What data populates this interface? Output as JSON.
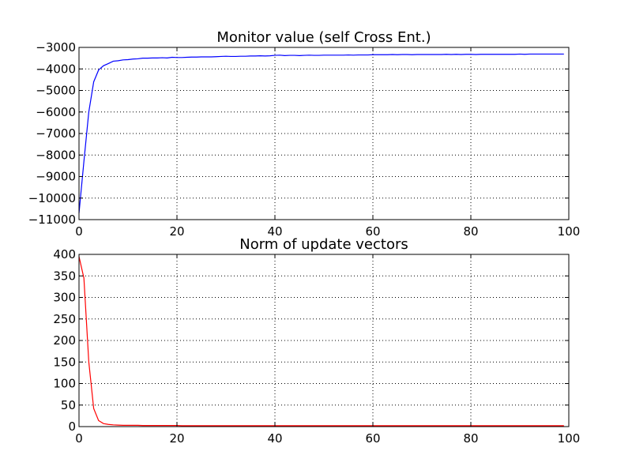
{
  "chart_data": [
    {
      "type": "line",
      "title": "Monitor value (self Cross Ent.)",
      "xlabel": "",
      "ylabel": "",
      "xlim": [
        0,
        100
      ],
      "ylim": [
        -11000,
        -3000
      ],
      "xticks": [
        0,
        20,
        40,
        60,
        80,
        100
      ],
      "xtick_labels": [
        "0",
        "20",
        "40",
        "60",
        "80",
        "100"
      ],
      "yticks": [
        -3000,
        -4000,
        -5000,
        -6000,
        -7000,
        -8000,
        -9000,
        -10000,
        -11000
      ],
      "ytick_labels": [
        "−3000",
        "−4000",
        "−5000",
        "−6000",
        "−7000",
        "−8000",
        "−9000",
        "−10000",
        "−11000"
      ],
      "grid": true,
      "color": "#0000ff",
      "series": [
        {
          "x": [
            0,
            1,
            2,
            3,
            4,
            5,
            6,
            7,
            8,
            9,
            10,
            11,
            12,
            13,
            14,
            15,
            16,
            17,
            18,
            19,
            20,
            21,
            22,
            23,
            24,
            25,
            26,
            27,
            28,
            29,
            30,
            31,
            32,
            33,
            34,
            35,
            36,
            37,
            38,
            39,
            40,
            41,
            42,
            43,
            44,
            45,
            46,
            47,
            48,
            49,
            50,
            51,
            52,
            53,
            54,
            55,
            56,
            57,
            58,
            59,
            60,
            61,
            62,
            63,
            64,
            65,
            66,
            67,
            68,
            69,
            70,
            71,
            72,
            73,
            74,
            75,
            76,
            77,
            78,
            79,
            80,
            81,
            82,
            83,
            84,
            85,
            86,
            87,
            88,
            89,
            90,
            91,
            92,
            93,
            94,
            95,
            96,
            97,
            98,
            99
          ],
          "values": [
            -10700,
            -8300,
            -6000,
            -4600,
            -4050,
            -3850,
            -3750,
            -3640,
            -3620,
            -3580,
            -3570,
            -3540,
            -3530,
            -3500,
            -3500,
            -3490,
            -3490,
            -3480,
            -3490,
            -3460,
            -3470,
            -3470,
            -3460,
            -3450,
            -3450,
            -3440,
            -3440,
            -3440,
            -3430,
            -3420,
            -3410,
            -3420,
            -3420,
            -3410,
            -3410,
            -3400,
            -3400,
            -3390,
            -3400,
            -3390,
            -3370,
            -3360,
            -3380,
            -3370,
            -3370,
            -3380,
            -3370,
            -3360,
            -3370,
            -3370,
            -3360,
            -3360,
            -3360,
            -3360,
            -3360,
            -3350,
            -3360,
            -3350,
            -3350,
            -3350,
            -3340,
            -3340,
            -3340,
            -3340,
            -3330,
            -3340,
            -3330,
            -3330,
            -3340,
            -3330,
            -3330,
            -3330,
            -3330,
            -3330,
            -3330,
            -3320,
            -3330,
            -3320,
            -3330,
            -3320,
            -3320,
            -3330,
            -3320,
            -3320,
            -3320,
            -3320,
            -3320,
            -3320,
            -3320,
            -3320,
            -3310,
            -3320,
            -3310,
            -3310,
            -3310,
            -3310,
            -3310,
            -3310,
            -3310,
            -3310
          ]
        }
      ]
    },
    {
      "type": "line",
      "title": "Norm of update vectors",
      "xlabel": "",
      "ylabel": "",
      "xlim": [
        0,
        100
      ],
      "ylim": [
        0,
        400
      ],
      "xticks": [
        0,
        20,
        40,
        60,
        80,
        100
      ],
      "xtick_labels": [
        "0",
        "20",
        "40",
        "60",
        "80",
        "100"
      ],
      "yticks": [
        0,
        50,
        100,
        150,
        200,
        250,
        300,
        350,
        400
      ],
      "ytick_labels": [
        "0",
        "50",
        "100",
        "150",
        "200",
        "250",
        "300",
        "350",
        "400"
      ],
      "grid": true,
      "color": "#ff0000",
      "series": [
        {
          "x": [
            0,
            1,
            2,
            3,
            4,
            5,
            6,
            7,
            8,
            9,
            10,
            11,
            12,
            13,
            14,
            15,
            16,
            17,
            18,
            19,
            20,
            21,
            22,
            23,
            24,
            25,
            26,
            27,
            28,
            29,
            30,
            31,
            32,
            33,
            34,
            35,
            36,
            37,
            38,
            39,
            40,
            41,
            42,
            43,
            44,
            45,
            46,
            47,
            48,
            49,
            50,
            51,
            52,
            53,
            54,
            55,
            56,
            57,
            58,
            59,
            60,
            61,
            62,
            63,
            64,
            65,
            66,
            67,
            68,
            69,
            70,
            71,
            72,
            73,
            74,
            75,
            76,
            77,
            78,
            79,
            80,
            81,
            82,
            83,
            84,
            85,
            86,
            87,
            88,
            89,
            90,
            91,
            92,
            93,
            94,
            95,
            96,
            97,
            98,
            99
          ],
          "values": [
            395,
            345,
            150,
            42,
            14,
            7,
            5,
            4,
            3.5,
            3,
            3,
            3,
            3,
            2.5,
            2.5,
            2.5,
            2.5,
            2.5,
            2.5,
            2.5,
            2.5,
            2,
            2,
            2,
            2,
            2,
            2,
            2,
            2,
            2,
            2,
            2,
            2,
            2,
            2,
            2,
            2,
            2,
            2,
            2,
            2,
            2,
            2,
            2,
            2,
            2,
            2,
            2,
            2,
            2,
            2,
            2,
            2,
            2,
            2,
            2,
            2,
            2,
            2,
            2,
            2,
            2,
            2,
            2,
            2,
            2,
            2,
            2,
            2,
            2,
            2,
            2,
            2,
            2,
            2,
            2,
            2,
            2,
            2,
            2,
            2,
            2,
            2,
            2,
            2,
            2,
            2,
            2,
            2,
            2,
            2,
            2,
            2,
            2,
            2,
            2,
            2,
            2,
            2,
            2
          ]
        }
      ]
    }
  ]
}
